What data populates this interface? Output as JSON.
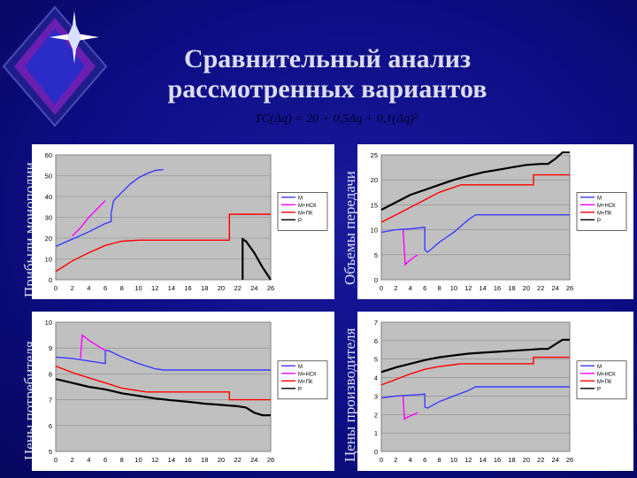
{
  "page": {
    "title_line1": "Сравнительный анализ",
    "title_line2": "рассмотренных вариантов",
    "formula": "TC(Δq) = 20 + 0,5Δq + 0,1(Δq)²"
  },
  "chart_data": [
    {
      "type": "line",
      "side_label": "Прибыли монополии",
      "xlim": [
        0,
        26
      ],
      "ylim": [
        0,
        60
      ],
      "x_ticks": [
        0,
        2,
        4,
        6,
        8,
        10,
        12,
        14,
        16,
        18,
        20,
        22,
        24,
        26
      ],
      "y_ticks": [
        0,
        10,
        20,
        30,
        40,
        50,
        60
      ],
      "grid": true,
      "legend_position": "right",
      "series": [
        {
          "name": "M",
          "color": "#3b3bff",
          "points": [
            [
              0,
              16
            ],
            [
              2,
              19.5
            ],
            [
              4,
              23
            ],
            [
              6,
              27
            ],
            [
              6.7,
              28
            ],
            [
              6.7,
              32
            ],
            [
              7,
              38
            ],
            [
              8,
              42
            ],
            [
              9,
              46
            ],
            [
              10,
              49
            ],
            [
              11,
              51
            ],
            [
              12,
              52.5
            ],
            [
              13,
              53
            ]
          ]
        },
        {
          "name": "M+НСК",
          "color": "#ff00ff",
          "points": [
            [
              2,
              21
            ],
            [
              3,
              25
            ],
            [
              4,
              30
            ],
            [
              5,
              34
            ],
            [
              6,
              38
            ]
          ]
        },
        {
          "name": "M+ПК",
          "color": "#ff0000",
          "points": [
            [
              0,
              4
            ],
            [
              2,
              9
            ],
            [
              4,
              13
            ],
            [
              6,
              16.5
            ],
            [
              8,
              18.5
            ],
            [
              10,
              19
            ],
            [
              12,
              19
            ],
            [
              14,
              19
            ],
            [
              16,
              19
            ],
            [
              18,
              19
            ],
            [
              20,
              19
            ],
            [
              21,
              19
            ],
            [
              21,
              31.5
            ],
            [
              22,
              31.5
            ],
            [
              24,
              31.5
            ],
            [
              26,
              31.5
            ]
          ]
        },
        {
          "name": "P",
          "color": "#000000",
          "points": [
            [
              22.6,
              0
            ],
            [
              22.6,
              19.5
            ],
            [
              23,
              18.5
            ],
            [
              24,
              13
            ],
            [
              25,
              6
            ],
            [
              26,
              0
            ]
          ]
        }
      ]
    },
    {
      "type": "line",
      "side_label": "Объемы передачи",
      "xlim": [
        0,
        26
      ],
      "ylim": [
        0,
        25
      ],
      "x_ticks": [
        0,
        2,
        4,
        6,
        8,
        10,
        12,
        14,
        16,
        18,
        20,
        22,
        24,
        26
      ],
      "y_ticks": [
        0,
        5,
        10,
        15,
        20,
        25
      ],
      "grid": true,
      "legend_position": "right",
      "series": [
        {
          "name": "M",
          "color": "#3b3bff",
          "points": [
            [
              0,
              9.5
            ],
            [
              2,
              10
            ],
            [
              4,
              10.2
            ],
            [
              6,
              10.5
            ],
            [
              6,
              6
            ],
            [
              6.4,
              5.5
            ],
            [
              8,
              7.5
            ],
            [
              10,
              9.5
            ],
            [
              12,
              12
            ],
            [
              13,
              13
            ],
            [
              16,
              13
            ],
            [
              18,
              13
            ],
            [
              20,
              13
            ],
            [
              22,
              13
            ],
            [
              24,
              13
            ],
            [
              26,
              13
            ]
          ]
        },
        {
          "name": "M+НСК",
          "color": "#ff00ff",
          "points": [
            [
              3,
              10
            ],
            [
              3.3,
              3
            ],
            [
              3.6,
              3.5
            ],
            [
              4.5,
              4.5
            ],
            [
              5,
              5
            ]
          ]
        },
        {
          "name": "M+ПК",
          "color": "#ff0000",
          "points": [
            [
              0,
              11.5
            ],
            [
              2,
              13
            ],
            [
              4,
              14.5
            ],
            [
              6,
              16
            ],
            [
              8,
              17.5
            ],
            [
              10,
              18.5
            ],
            [
              11,
              19
            ],
            [
              14,
              19
            ],
            [
              16,
              19
            ],
            [
              18,
              19
            ],
            [
              20,
              19
            ],
            [
              21,
              19
            ],
            [
              21,
              21
            ],
            [
              24,
              21
            ],
            [
              26,
              21
            ]
          ]
        },
        {
          "name": "P",
          "color": "#000000",
          "points": [
            [
              0,
              14
            ],
            [
              2,
              15.5
            ],
            [
              4,
              17
            ],
            [
              6,
              18
            ],
            [
              8,
              19
            ],
            [
              10,
              20
            ],
            [
              12,
              20.8
            ],
            [
              14,
              21.5
            ],
            [
              16,
              22
            ],
            [
              18,
              22.5
            ],
            [
              20,
              23
            ],
            [
              22,
              23.2
            ],
            [
              23,
              23.2
            ],
            [
              24,
              24.2
            ],
            [
              25,
              25.5
            ],
            [
              26,
              25.5
            ]
          ]
        }
      ]
    },
    {
      "type": "line",
      "side_label": "Цены потребителя",
      "xlim": [
        0,
        26
      ],
      "ylim": [
        5,
        10
      ],
      "x_ticks": [
        0,
        2,
        4,
        6,
        8,
        10,
        12,
        14,
        16,
        18,
        20,
        22,
        24,
        26
      ],
      "y_ticks": [
        5,
        6,
        7,
        8,
        9,
        10
      ],
      "grid": true,
      "legend_position": "right",
      "series": [
        {
          "name": "M",
          "color": "#3b3bff",
          "points": [
            [
              0,
              8.65
            ],
            [
              2,
              8.6
            ],
            [
              4,
              8.5
            ],
            [
              6,
              8.4
            ],
            [
              6,
              8.9
            ],
            [
              6.4,
              8.9
            ],
            [
              8,
              8.65
            ],
            [
              10,
              8.4
            ],
            [
              12,
              8.2
            ],
            [
              13,
              8.15
            ],
            [
              14,
              8.15
            ],
            [
              16,
              8.15
            ],
            [
              18,
              8.15
            ],
            [
              20,
              8.15
            ],
            [
              22,
              8.15
            ],
            [
              24,
              8.15
            ],
            [
              26,
              8.15
            ]
          ]
        },
        {
          "name": "M+НСК",
          "color": "#ff00ff",
          "points": [
            [
              3,
              8.6
            ],
            [
              3.2,
              9.5
            ],
            [
              4,
              9.3
            ],
            [
              5,
              9.1
            ],
            [
              6,
              8.9
            ]
          ]
        },
        {
          "name": "M+ПК",
          "color": "#ff0000",
          "points": [
            [
              0,
              8.3
            ],
            [
              2,
              8.05
            ],
            [
              4,
              7.85
            ],
            [
              6,
              7.65
            ],
            [
              8,
              7.45
            ],
            [
              10,
              7.35
            ],
            [
              11,
              7.3
            ],
            [
              14,
              7.3
            ],
            [
              16,
              7.3
            ],
            [
              18,
              7.3
            ],
            [
              20,
              7.3
            ],
            [
              21,
              7.3
            ],
            [
              21,
              7
            ],
            [
              24,
              7
            ],
            [
              26,
              7
            ]
          ]
        },
        {
          "name": "P",
          "color": "#000000",
          "points": [
            [
              0,
              7.8
            ],
            [
              2,
              7.65
            ],
            [
              4,
              7.5
            ],
            [
              6,
              7.4
            ],
            [
              8,
              7.25
            ],
            [
              10,
              7.15
            ],
            [
              12,
              7.05
            ],
            [
              14,
              6.98
            ],
            [
              16,
              6.92
            ],
            [
              18,
              6.85
            ],
            [
              20,
              6.8
            ],
            [
              22,
              6.75
            ],
            [
              23,
              6.7
            ],
            [
              24,
              6.5
            ],
            [
              25,
              6.4
            ],
            [
              26,
              6.4
            ]
          ]
        }
      ]
    },
    {
      "type": "line",
      "side_label": "Цены производителя",
      "xlim": [
        0,
        26
      ],
      "ylim": [
        0,
        7
      ],
      "x_ticks": [
        0,
        2,
        4,
        6,
        8,
        10,
        12,
        14,
        16,
        18,
        20,
        22,
        24,
        26
      ],
      "y_ticks": [
        0,
        1,
        2,
        3,
        4,
        5,
        6,
        7
      ],
      "grid": true,
      "legend_position": "right",
      "series": [
        {
          "name": "M",
          "color": "#3b3bff",
          "points": [
            [
              0,
              2.9
            ],
            [
              2,
              3
            ],
            [
              4,
              3.05
            ],
            [
              6,
              3.1
            ],
            [
              6,
              2.4
            ],
            [
              6.4,
              2.35
            ],
            [
              8,
              2.7
            ],
            [
              10,
              3
            ],
            [
              12,
              3.3
            ],
            [
              13,
              3.5
            ],
            [
              16,
              3.5
            ],
            [
              18,
              3.5
            ],
            [
              20,
              3.5
            ],
            [
              22,
              3.5
            ],
            [
              24,
              3.5
            ],
            [
              26,
              3.5
            ]
          ]
        },
        {
          "name": "M+НСК",
          "color": "#ff00ff",
          "points": [
            [
              3,
              3
            ],
            [
              3.2,
              1.75
            ],
            [
              3.6,
              1.85
            ],
            [
              5,
              2.1
            ]
          ]
        },
        {
          "name": "M+ПК",
          "color": "#ff0000",
          "points": [
            [
              0,
              3.6
            ],
            [
              2,
              3.9
            ],
            [
              4,
              4.2
            ],
            [
              6,
              4.45
            ],
            [
              8,
              4.6
            ],
            [
              10,
              4.7
            ],
            [
              11,
              4.75
            ],
            [
              14,
              4.75
            ],
            [
              16,
              4.75
            ],
            [
              18,
              4.75
            ],
            [
              20,
              4.75
            ],
            [
              21,
              4.75
            ],
            [
              21,
              5.1
            ],
            [
              24,
              5.1
            ],
            [
              26,
              5.1
            ]
          ]
        },
        {
          "name": "P",
          "color": "#000000",
          "points": [
            [
              0,
              4.3
            ],
            [
              2,
              4.55
            ],
            [
              4,
              4.75
            ],
            [
              6,
              4.95
            ],
            [
              8,
              5.1
            ],
            [
              10,
              5.2
            ],
            [
              12,
              5.3
            ],
            [
              14,
              5.35
            ],
            [
              16,
              5.4
            ],
            [
              18,
              5.45
            ],
            [
              20,
              5.5
            ],
            [
              22,
              5.55
            ],
            [
              23,
              5.55
            ],
            [
              24,
              5.8
            ],
            [
              25,
              6.05
            ],
            [
              26,
              6.05
            ]
          ]
        }
      ]
    }
  ]
}
